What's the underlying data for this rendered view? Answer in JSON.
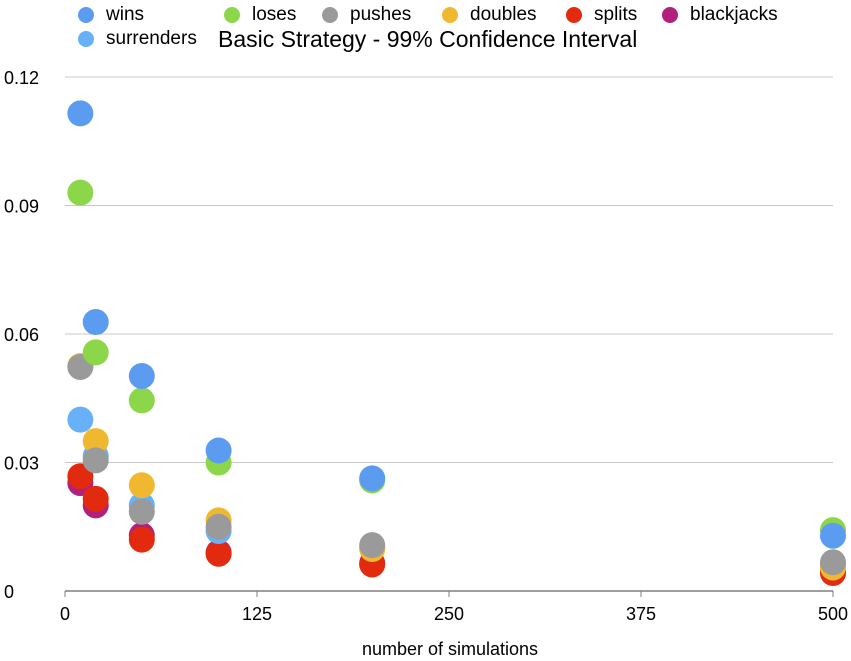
{
  "chart_data": {
    "type": "scatter",
    "title": "Basic Strategy - 99% Confidence Interval",
    "xlabel": "number of simulations",
    "ylabel": "",
    "xlim": [
      0,
      500
    ],
    "ylim": [
      0,
      0.12
    ],
    "xticks": [
      0,
      125,
      250,
      375,
      500
    ],
    "xtick_labels": [
      "0",
      "125",
      "250",
      "375",
      "500"
    ],
    "yticks": [
      0,
      0.03,
      0.06,
      0.09,
      0.12
    ],
    "ytick_labels": [
      "0",
      "0.03",
      "0.06",
      "0.09",
      "0.12"
    ],
    "grid": true,
    "legend_position": "top-left",
    "series": [
      {
        "name": "wins",
        "color": "#5b9cf1",
        "points": [
          [
            10,
            0.1115
          ],
          [
            20,
            0.0628
          ],
          [
            50,
            0.0502
          ],
          [
            100,
            0.0328
          ],
          [
            200,
            0.0263
          ],
          [
            500,
            0.0129
          ]
        ]
      },
      {
        "name": "surrenders",
        "color": "#66b1f7",
        "points": [
          [
            10,
            0.04
          ],
          [
            20,
            0.0315
          ],
          [
            50,
            0.02
          ],
          [
            100,
            0.014
          ],
          [
            200,
            0.01
          ],
          [
            500,
            0.006
          ]
        ]
      },
      {
        "name": "loses",
        "color": "#8cd64a",
        "points": [
          [
            10,
            0.093
          ],
          [
            20,
            0.0557
          ],
          [
            50,
            0.0445
          ],
          [
            100,
            0.03
          ],
          [
            200,
            0.0258
          ],
          [
            500,
            0.0142
          ]
        ]
      },
      {
        "name": "pushes",
        "color": "#9a9a9a",
        "points": [
          [
            10,
            0.0523
          ],
          [
            20,
            0.0305
          ],
          [
            50,
            0.0185
          ],
          [
            100,
            0.015
          ],
          [
            200,
            0.0107
          ],
          [
            500,
            0.0067
          ]
        ]
      },
      {
        "name": "doubles",
        "color": "#f0b82e",
        "points": [
          [
            10,
            0.0525
          ],
          [
            20,
            0.035
          ],
          [
            50,
            0.0247
          ],
          [
            100,
            0.0165
          ],
          [
            200,
            0.0098
          ],
          [
            500,
            0.0055
          ]
        ]
      },
      {
        "name": "splits",
        "color": "#e22a0e",
        "points": [
          [
            10,
            0.0268
          ],
          [
            20,
            0.0215
          ],
          [
            50,
            0.012
          ],
          [
            100,
            0.0087
          ],
          [
            200,
            0.0062
          ],
          [
            500,
            0.0042
          ]
        ]
      },
      {
        "name": "blackjacks",
        "color": "#b0207c",
        "points": [
          [
            10,
            0.0252
          ],
          [
            20,
            0.02
          ],
          [
            50,
            0.013
          ],
          [
            100,
            0.009
          ],
          [
            200,
            0.0065
          ],
          [
            500,
            0.0045
          ]
        ]
      }
    ]
  }
}
